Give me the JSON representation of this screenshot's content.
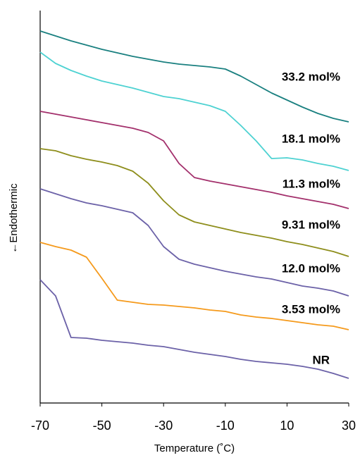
{
  "chart_data": {
    "type": "line",
    "x_label": "Temperature (˚C)",
    "y_label": "←Endothermic",
    "x": [
      -70,
      -65,
      -60,
      -55,
      -50,
      -45,
      -40,
      -35,
      -30,
      -25,
      -20,
      -15,
      -10,
      -5,
      0,
      5,
      10,
      15,
      20,
      25,
      30
    ],
    "xlim": [
      -70,
      30
    ],
    "xticks": [
      -70,
      -50,
      -30,
      -10,
      10,
      30
    ],
    "ylim": [
      0,
      557
    ],
    "series": [
      {
        "name": "33.2 mol%",
        "color": "#1a8080",
        "values": [
          528,
          521,
          514,
          508,
          502,
          497,
          492,
          488,
          484,
          481,
          479,
          477,
          474,
          464,
          452,
          440,
          430,
          420,
          411,
          404,
          399
        ]
      },
      {
        "name": "18.1 mol%",
        "color": "#4ed2d2",
        "values": [
          498,
          482,
          472,
          464,
          457,
          452,
          447,
          441,
          435,
          432,
          427,
          422,
          414,
          394,
          372,
          347,
          348,
          345,
          340,
          336,
          330
        ]
      },
      {
        "name": "11.3 mol%",
        "color": "#a3306c",
        "values": [
          414,
          410,
          406,
          402,
          398,
          394,
          390,
          384,
          372,
          340,
          320,
          315,
          311,
          307,
          303,
          299,
          294,
          290,
          286,
          282,
          276
        ]
      },
      {
        "name": "9.31 mol%",
        "color": "#8e8e1c",
        "values": [
          361,
          358,
          351,
          346,
          342,
          337,
          329,
          312,
          287,
          267,
          257,
          252,
          247,
          242,
          238,
          234,
          229,
          225,
          220,
          215,
          208
        ]
      },
      {
        "name": "12.0 mol%",
        "color": "#6c62a8",
        "values": [
          304,
          297,
          290,
          284,
          280,
          275,
          270,
          252,
          222,
          204,
          197,
          192,
          187,
          183,
          179,
          176,
          171,
          166,
          163,
          159,
          152
        ]
      },
      {
        "name": "3.53 mol%",
        "color": "#f59a1c",
        "values": [
          228,
          222,
          217,
          207,
          177,
          146,
          143,
          140,
          139,
          137,
          135,
          132,
          130,
          125,
          122,
          120,
          117,
          114,
          111,
          109,
          104
        ]
      },
      {
        "name": "NR",
        "color": "#6c62a8",
        "values": [
          175,
          152,
          93,
          92,
          89,
          87,
          85,
          82,
          80,
          76,
          72,
          69,
          66,
          62,
          59,
          57,
          55,
          52,
          48,
          42,
          35
        ]
      }
    ]
  }
}
